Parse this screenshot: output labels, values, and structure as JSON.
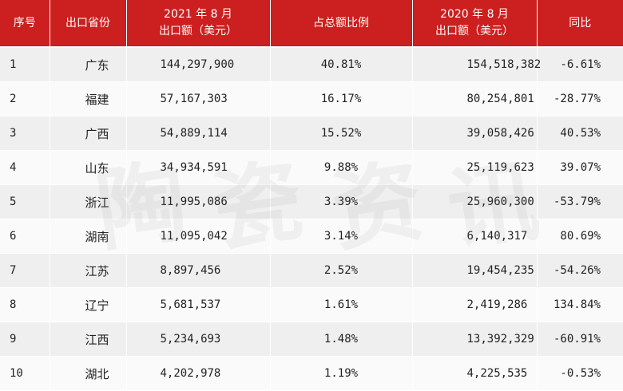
{
  "table": {
    "headers": {
      "index": "序号",
      "province": "出口省份",
      "export_2021_line1": "2021 年 8 月",
      "export_2021_line2": "出口额（美元）",
      "share": "占总额比例",
      "export_2020_line1": "2020 年 8 月",
      "export_2020_line2": "出口额（美元）",
      "yoy": "同比"
    },
    "rows": [
      {
        "index": "1",
        "province": "广东",
        "export_2021": "144,297,900",
        "share": "40.81%",
        "export_2020": "154,518,382",
        "yoy": "-6.61%"
      },
      {
        "index": "2",
        "province": "福建",
        "export_2021": "57,167,303",
        "share": "16.17%",
        "export_2020": "80,254,801",
        "yoy": "-28.77%"
      },
      {
        "index": "3",
        "province": "广西",
        "export_2021": "54,889,114",
        "share": "15.52%",
        "export_2020": "39,058,426",
        "yoy": "40.53%"
      },
      {
        "index": "4",
        "province": "山东",
        "export_2021": "34,934,591",
        "share": "9.88%",
        "export_2020": "25,119,623",
        "yoy": "39.07%"
      },
      {
        "index": "5",
        "province": "浙江",
        "export_2021": "11,995,086",
        "share": "3.39%",
        "export_2020": "25,960,300",
        "yoy": "-53.79%"
      },
      {
        "index": "6",
        "province": "湖南",
        "export_2021": "11,095,042",
        "share": "3.14%",
        "export_2020": "6,140,317",
        "yoy": "80.69%"
      },
      {
        "index": "7",
        "province": "江苏",
        "export_2021": "8,897,456",
        "share": "2.52%",
        "export_2020": "19,454,235",
        "yoy": "-54.26%"
      },
      {
        "index": "8",
        "province": "辽宁",
        "export_2021": "5,681,537",
        "share": "1.61%",
        "export_2020": "2,419,286",
        "yoy": "134.84%"
      },
      {
        "index": "9",
        "province": "江西",
        "export_2021": "5,234,693",
        "share": "1.48%",
        "export_2020": "13,392,329",
        "yoy": "-60.91%"
      },
      {
        "index": "10",
        "province": "湖北",
        "export_2021": "4,202,978",
        "share": "1.19%",
        "export_2020": "4,225,535",
        "yoy": "-0.53%"
      }
    ]
  },
  "watermark": {
    "chars": [
      "陶",
      "瓷",
      "资",
      "讯"
    ]
  },
  "colors": {
    "header_bg": "#cc1f1f",
    "header_text": "#ffffff",
    "row_odd": "#efefef",
    "row_even": "#fafafa"
  }
}
